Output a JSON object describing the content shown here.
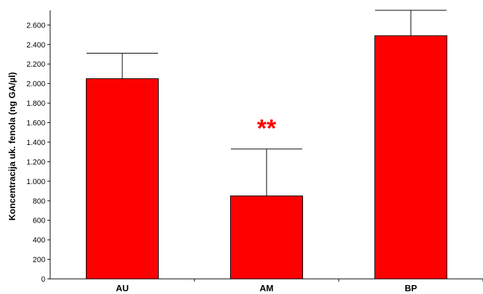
{
  "chart_data": {
    "type": "bar",
    "categories": [
      "AU",
      "AM",
      "BP"
    ],
    "values": [
      2050,
      850,
      2490
    ],
    "error_upper": [
      2310,
      1330,
      2750
    ],
    "ylabel": "Koncentracija uk. fenola (ng GA/µl)",
    "xlabel": "",
    "ylim": [
      0,
      2750
    ],
    "yticks": [
      0,
      200,
      400,
      600,
      800,
      1000,
      1200,
      1400,
      1600,
      1800,
      2000,
      2200,
      2400,
      2600
    ],
    "ytick_labels": [
      "0",
      "200",
      "400",
      "600",
      "800",
      "1.000",
      "1.200",
      "1.400",
      "1.600",
      "1.800",
      "2.000",
      "2.200",
      "2.400",
      "2.600"
    ],
    "bar_color": "#ff0000",
    "annotation": {
      "text": "**",
      "category": "AM",
      "color": "#ff0000"
    },
    "grid": false
  }
}
